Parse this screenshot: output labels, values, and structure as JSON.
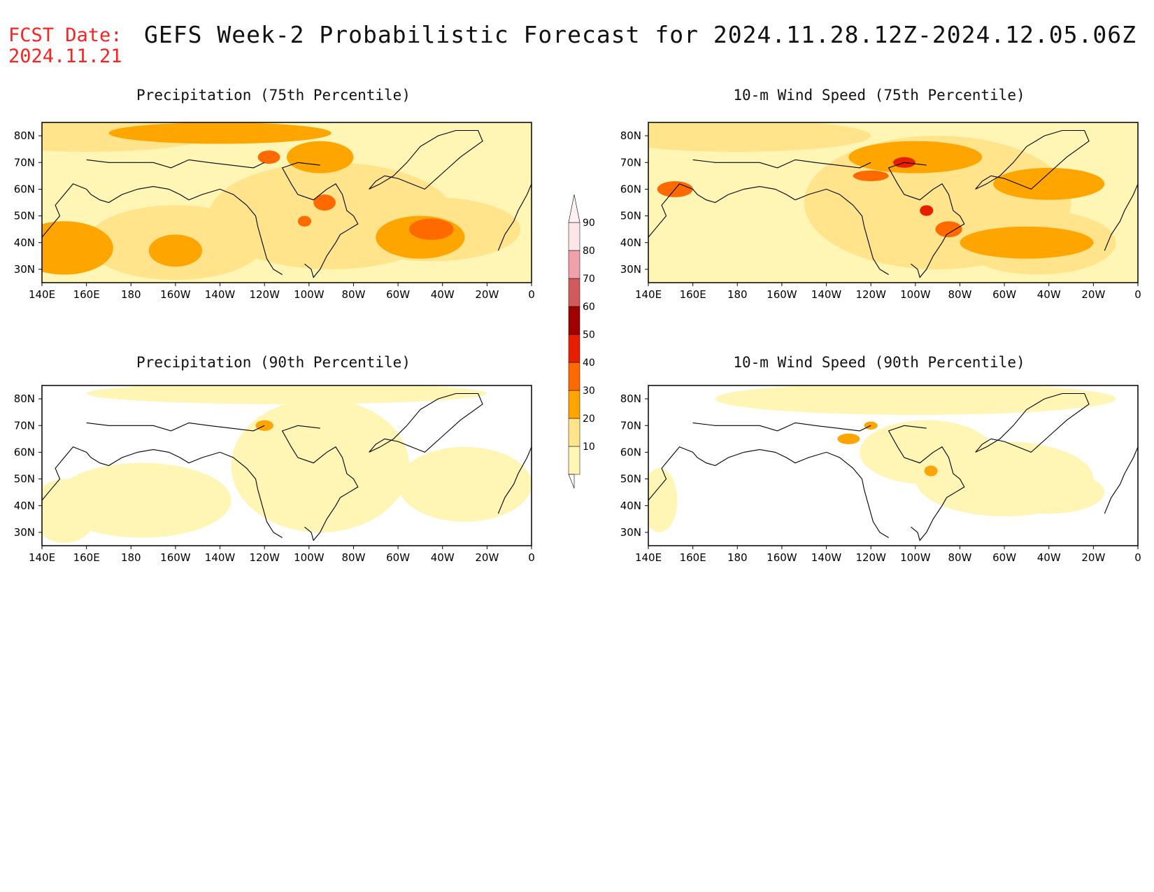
{
  "header": {
    "fcst_label": "FCST Date:",
    "fcst_date": "2024.11.21",
    "title": "GEFS Week-2 Probabilistic Forecast for 2024.11.28.12Z-2024.12.05.06Z"
  },
  "panels": [
    {
      "id": "precip-75",
      "title": "Precipitation (75th Percentile)"
    },
    {
      "id": "wind-75",
      "title": "10-m Wind Speed (75th Percentile)"
    },
    {
      "id": "precip-90",
      "title": "Precipitation (90th Percentile)"
    },
    {
      "id": "wind-90",
      "title": "10-m Wind Speed (90th Percentile)"
    }
  ],
  "axes": {
    "lat_labels": [
      "80N",
      "70N",
      "60N",
      "50N",
      "40N",
      "30N"
    ],
    "lon_labels": [
      "140E",
      "160E",
      "180",
      "160W",
      "140W",
      "120W",
      "100W",
      "80W",
      "60W",
      "40W",
      "20W",
      "0"
    ]
  },
  "colorbar": {
    "levels": [
      "10",
      "20",
      "30",
      "40",
      "50",
      "60",
      "70",
      "80",
      "90"
    ],
    "colors": [
      "#fff5b4",
      "#ffe48c",
      "#ffa500",
      "#ff6a00",
      "#e81e00",
      "#a00000",
      "#d25a5a",
      "#f0a0a8",
      "#fde6e8"
    ]
  }
}
